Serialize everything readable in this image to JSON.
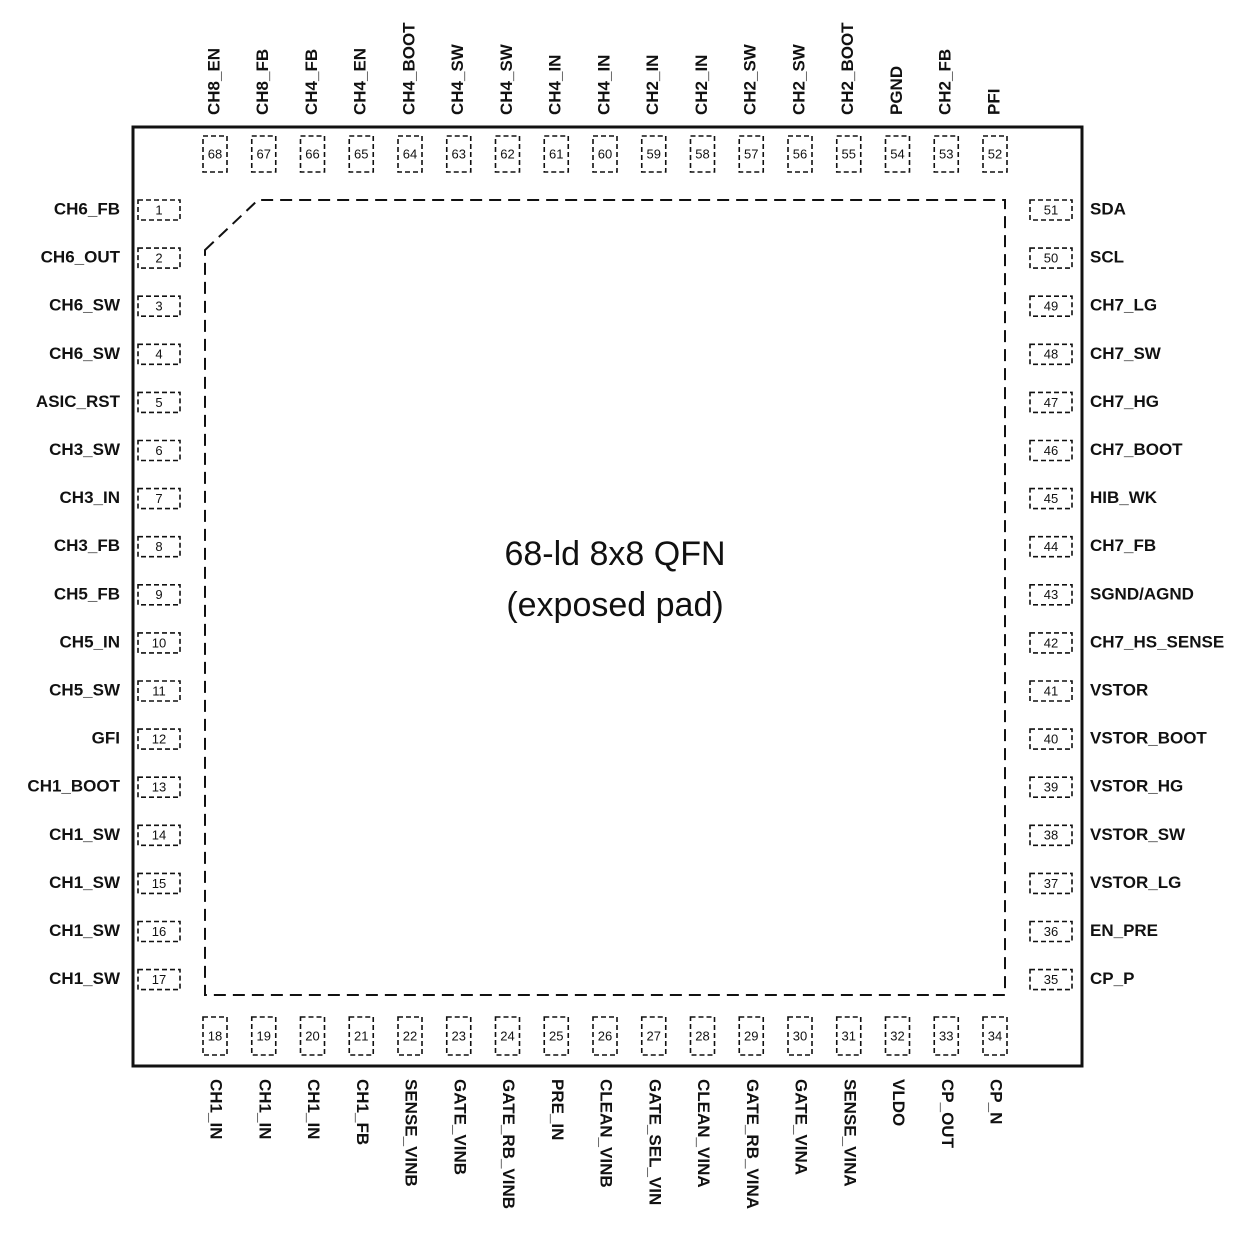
{
  "package": {
    "line1": "68-ld 8x8 QFN",
    "line2": "(exposed pad)"
  },
  "pins": {
    "left": [
      {
        "number": 1,
        "name": "CH6_FB"
      },
      {
        "number": 2,
        "name": "CH6_OUT"
      },
      {
        "number": 3,
        "name": "CH6_SW"
      },
      {
        "number": 4,
        "name": "CH6_SW"
      },
      {
        "number": 5,
        "name": "ASIC_RST"
      },
      {
        "number": 6,
        "name": "CH3_SW"
      },
      {
        "number": 7,
        "name": "CH3_IN"
      },
      {
        "number": 8,
        "name": "CH3_FB"
      },
      {
        "number": 9,
        "name": "CH5_FB"
      },
      {
        "number": 10,
        "name": "CH5_IN"
      },
      {
        "number": 11,
        "name": "CH5_SW"
      },
      {
        "number": 12,
        "name": "GFI"
      },
      {
        "number": 13,
        "name": "CH1_BOOT"
      },
      {
        "number": 14,
        "name": "CH1_SW"
      },
      {
        "number": 15,
        "name": "CH1_SW"
      },
      {
        "number": 16,
        "name": "CH1_SW"
      },
      {
        "number": 17,
        "name": "CH1_SW"
      }
    ],
    "bottom": [
      {
        "number": 18,
        "name": "CH1_IN"
      },
      {
        "number": 19,
        "name": "CH1_IN"
      },
      {
        "number": 20,
        "name": "CH1_IN"
      },
      {
        "number": 21,
        "name": "CH1_FB"
      },
      {
        "number": 22,
        "name": "SENSE_VINB"
      },
      {
        "number": 23,
        "name": "GATE_VINB"
      },
      {
        "number": 24,
        "name": "GATE_RB_VINB"
      },
      {
        "number": 25,
        "name": "PRE_IN"
      },
      {
        "number": 26,
        "name": "CLEAN_VINB"
      },
      {
        "number": 27,
        "name": "GATE_SEL_VIN"
      },
      {
        "number": 28,
        "name": "CLEAN_VINA"
      },
      {
        "number": 29,
        "name": "GATE_RB_VINA"
      },
      {
        "number": 30,
        "name": "GATE_VINA"
      },
      {
        "number": 31,
        "name": "SENSE_VINA"
      },
      {
        "number": 32,
        "name": "VLDO"
      },
      {
        "number": 33,
        "name": "CP_OUT"
      },
      {
        "number": 34,
        "name": "CP_N"
      }
    ],
    "right": [
      {
        "number": 51,
        "name": "SDA"
      },
      {
        "number": 50,
        "name": "SCL"
      },
      {
        "number": 49,
        "name": "CH7_LG"
      },
      {
        "number": 48,
        "name": "CH7_SW"
      },
      {
        "number": 47,
        "name": "CH7_HG"
      },
      {
        "number": 46,
        "name": "CH7_BOOT"
      },
      {
        "number": 45,
        "name": "HIB_WK"
      },
      {
        "number": 44,
        "name": "CH7_FB"
      },
      {
        "number": 43,
        "name": "SGND/AGND"
      },
      {
        "number": 42,
        "name": "CH7_HS_SENSE"
      },
      {
        "number": 41,
        "name": "VSTOR"
      },
      {
        "number": 40,
        "name": "VSTOR_BOOT"
      },
      {
        "number": 39,
        "name": "VSTOR_HG"
      },
      {
        "number": 38,
        "name": "VSTOR_SW"
      },
      {
        "number": 37,
        "name": "VSTOR_LG"
      },
      {
        "number": 36,
        "name": "EN_PRE"
      },
      {
        "number": 35,
        "name": "CP_P"
      }
    ],
    "top": [
      {
        "number": 68,
        "name": "CH8_EN"
      },
      {
        "number": 67,
        "name": "CH8_FB"
      },
      {
        "number": 66,
        "name": "CH4_FB"
      },
      {
        "number": 65,
        "name": "CH4_EN"
      },
      {
        "number": 64,
        "name": "CH4_BOOT"
      },
      {
        "number": 63,
        "name": "CH4_SW"
      },
      {
        "number": 62,
        "name": "CH4_SW"
      },
      {
        "number": 61,
        "name": "CH4_IN"
      },
      {
        "number": 60,
        "name": "CH4_IN"
      },
      {
        "number": 59,
        "name": "CH2_IN"
      },
      {
        "number": 58,
        "name": "CH2_IN"
      },
      {
        "number": 57,
        "name": "CH2_SW"
      },
      {
        "number": 56,
        "name": "CH2_SW"
      },
      {
        "number": 55,
        "name": "CH2_BOOT"
      },
      {
        "number": 54,
        "name": "PGND"
      },
      {
        "number": 53,
        "name": "CH2_FB"
      },
      {
        "number": 52,
        "name": "PFI"
      }
    ]
  }
}
